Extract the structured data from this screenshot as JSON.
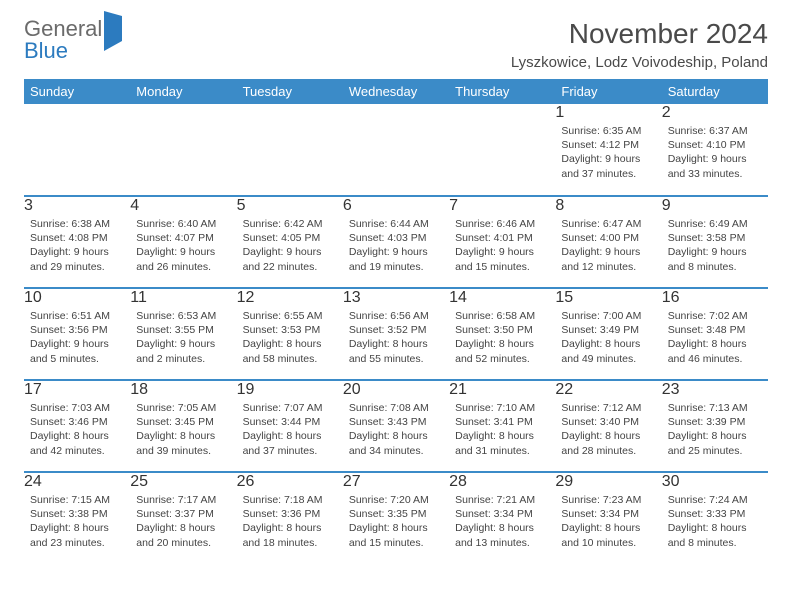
{
  "brand": {
    "part1": "General",
    "part2": "Blue"
  },
  "title": "November 2024",
  "location": "Lyszkowice, Lodz Voivodeship, Poland",
  "weekdays": [
    "Sunday",
    "Monday",
    "Tuesday",
    "Wednesday",
    "Thursday",
    "Friday",
    "Saturday"
  ],
  "colors": {
    "header_bg": "#3b8bc8",
    "daybar_bg": "#e9e9e9",
    "border": "#3b8bc8",
    "text": "#444444",
    "title": "#4a4a4a",
    "logo_gray": "#6b6b6b",
    "logo_blue": "#2c7bbf"
  },
  "weeks": [
    [
      {
        "n": "",
        "sr": "",
        "ss": "",
        "dl": ""
      },
      {
        "n": "",
        "sr": "",
        "ss": "",
        "dl": ""
      },
      {
        "n": "",
        "sr": "",
        "ss": "",
        "dl": ""
      },
      {
        "n": "",
        "sr": "",
        "ss": "",
        "dl": ""
      },
      {
        "n": "",
        "sr": "",
        "ss": "",
        "dl": ""
      },
      {
        "n": "1",
        "sr": "Sunrise: 6:35 AM",
        "ss": "Sunset: 4:12 PM",
        "dl": "Daylight: 9 hours and 37 minutes."
      },
      {
        "n": "2",
        "sr": "Sunrise: 6:37 AM",
        "ss": "Sunset: 4:10 PM",
        "dl": "Daylight: 9 hours and 33 minutes."
      }
    ],
    [
      {
        "n": "3",
        "sr": "Sunrise: 6:38 AM",
        "ss": "Sunset: 4:08 PM",
        "dl": "Daylight: 9 hours and 29 minutes."
      },
      {
        "n": "4",
        "sr": "Sunrise: 6:40 AM",
        "ss": "Sunset: 4:07 PM",
        "dl": "Daylight: 9 hours and 26 minutes."
      },
      {
        "n": "5",
        "sr": "Sunrise: 6:42 AM",
        "ss": "Sunset: 4:05 PM",
        "dl": "Daylight: 9 hours and 22 minutes."
      },
      {
        "n": "6",
        "sr": "Sunrise: 6:44 AM",
        "ss": "Sunset: 4:03 PM",
        "dl": "Daylight: 9 hours and 19 minutes."
      },
      {
        "n": "7",
        "sr": "Sunrise: 6:46 AM",
        "ss": "Sunset: 4:01 PM",
        "dl": "Daylight: 9 hours and 15 minutes."
      },
      {
        "n": "8",
        "sr": "Sunrise: 6:47 AM",
        "ss": "Sunset: 4:00 PM",
        "dl": "Daylight: 9 hours and 12 minutes."
      },
      {
        "n": "9",
        "sr": "Sunrise: 6:49 AM",
        "ss": "Sunset: 3:58 PM",
        "dl": "Daylight: 9 hours and 8 minutes."
      }
    ],
    [
      {
        "n": "10",
        "sr": "Sunrise: 6:51 AM",
        "ss": "Sunset: 3:56 PM",
        "dl": "Daylight: 9 hours and 5 minutes."
      },
      {
        "n": "11",
        "sr": "Sunrise: 6:53 AM",
        "ss": "Sunset: 3:55 PM",
        "dl": "Daylight: 9 hours and 2 minutes."
      },
      {
        "n": "12",
        "sr": "Sunrise: 6:55 AM",
        "ss": "Sunset: 3:53 PM",
        "dl": "Daylight: 8 hours and 58 minutes."
      },
      {
        "n": "13",
        "sr": "Sunrise: 6:56 AM",
        "ss": "Sunset: 3:52 PM",
        "dl": "Daylight: 8 hours and 55 minutes."
      },
      {
        "n": "14",
        "sr": "Sunrise: 6:58 AM",
        "ss": "Sunset: 3:50 PM",
        "dl": "Daylight: 8 hours and 52 minutes."
      },
      {
        "n": "15",
        "sr": "Sunrise: 7:00 AM",
        "ss": "Sunset: 3:49 PM",
        "dl": "Daylight: 8 hours and 49 minutes."
      },
      {
        "n": "16",
        "sr": "Sunrise: 7:02 AM",
        "ss": "Sunset: 3:48 PM",
        "dl": "Daylight: 8 hours and 46 minutes."
      }
    ],
    [
      {
        "n": "17",
        "sr": "Sunrise: 7:03 AM",
        "ss": "Sunset: 3:46 PM",
        "dl": "Daylight: 8 hours and 42 minutes."
      },
      {
        "n": "18",
        "sr": "Sunrise: 7:05 AM",
        "ss": "Sunset: 3:45 PM",
        "dl": "Daylight: 8 hours and 39 minutes."
      },
      {
        "n": "19",
        "sr": "Sunrise: 7:07 AM",
        "ss": "Sunset: 3:44 PM",
        "dl": "Daylight: 8 hours and 37 minutes."
      },
      {
        "n": "20",
        "sr": "Sunrise: 7:08 AM",
        "ss": "Sunset: 3:43 PM",
        "dl": "Daylight: 8 hours and 34 minutes."
      },
      {
        "n": "21",
        "sr": "Sunrise: 7:10 AM",
        "ss": "Sunset: 3:41 PM",
        "dl": "Daylight: 8 hours and 31 minutes."
      },
      {
        "n": "22",
        "sr": "Sunrise: 7:12 AM",
        "ss": "Sunset: 3:40 PM",
        "dl": "Daylight: 8 hours and 28 minutes."
      },
      {
        "n": "23",
        "sr": "Sunrise: 7:13 AM",
        "ss": "Sunset: 3:39 PM",
        "dl": "Daylight: 8 hours and 25 minutes."
      }
    ],
    [
      {
        "n": "24",
        "sr": "Sunrise: 7:15 AM",
        "ss": "Sunset: 3:38 PM",
        "dl": "Daylight: 8 hours and 23 minutes."
      },
      {
        "n": "25",
        "sr": "Sunrise: 7:17 AM",
        "ss": "Sunset: 3:37 PM",
        "dl": "Daylight: 8 hours and 20 minutes."
      },
      {
        "n": "26",
        "sr": "Sunrise: 7:18 AM",
        "ss": "Sunset: 3:36 PM",
        "dl": "Daylight: 8 hours and 18 minutes."
      },
      {
        "n": "27",
        "sr": "Sunrise: 7:20 AM",
        "ss": "Sunset: 3:35 PM",
        "dl": "Daylight: 8 hours and 15 minutes."
      },
      {
        "n": "28",
        "sr": "Sunrise: 7:21 AM",
        "ss": "Sunset: 3:34 PM",
        "dl": "Daylight: 8 hours and 13 minutes."
      },
      {
        "n": "29",
        "sr": "Sunrise: 7:23 AM",
        "ss": "Sunset: 3:34 PM",
        "dl": "Daylight: 8 hours and 10 minutes."
      },
      {
        "n": "30",
        "sr": "Sunrise: 7:24 AM",
        "ss": "Sunset: 3:33 PM",
        "dl": "Daylight: 8 hours and 8 minutes."
      }
    ]
  ]
}
